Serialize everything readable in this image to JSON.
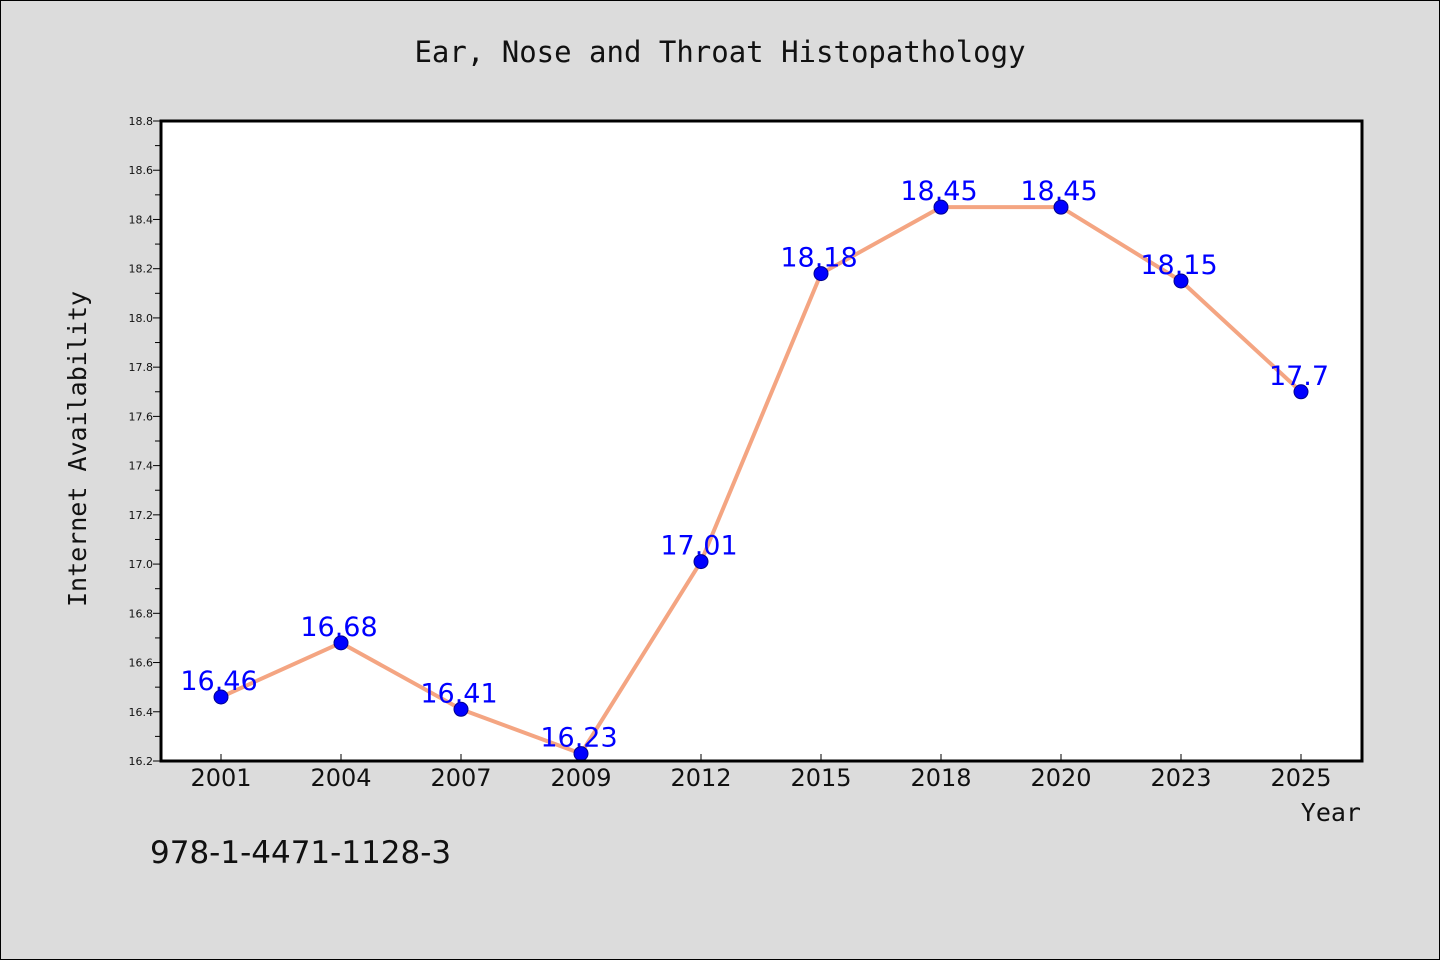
{
  "chart_data": {
    "type": "line",
    "title": "Ear, Nose and Throat Histopathology",
    "xlabel": "Year",
    "ylabel": "Internet Availability",
    "categories": [
      "2001",
      "2004",
      "2007",
      "2009",
      "2012",
      "2015",
      "2018",
      "2020",
      "2023",
      "2025"
    ],
    "series": [
      {
        "values": [
          16.46,
          16.68,
          16.41,
          16.23,
          17.01,
          18.18,
          18.45,
          18.45,
          18.15,
          17.7
        ],
        "data_labels": [
          "16.46",
          "16.68",
          "16.41",
          "16.23",
          "17.01",
          "18.18",
          "18.45",
          "18.45",
          "18.15",
          "17.7"
        ],
        "line_color": "#f4a582",
        "marker_color": "#0000ff"
      }
    ],
    "ylim": [
      16.2,
      18.8
    ],
    "yticks": [
      "16.2",
      "16.4",
      "16.6",
      "16.8",
      "17.0",
      "17.2",
      "17.4",
      "17.6",
      "17.8",
      "18.0",
      "18.2",
      "18.4",
      "18.6",
      "18.8"
    ],
    "grid": false,
    "legend": "none"
  },
  "footer": {
    "isbn": "978-1-4471-1128-3"
  },
  "colors": {
    "background": "#dcdcdc",
    "plot_background": "#ffffff",
    "label_color": "#0000ff"
  }
}
